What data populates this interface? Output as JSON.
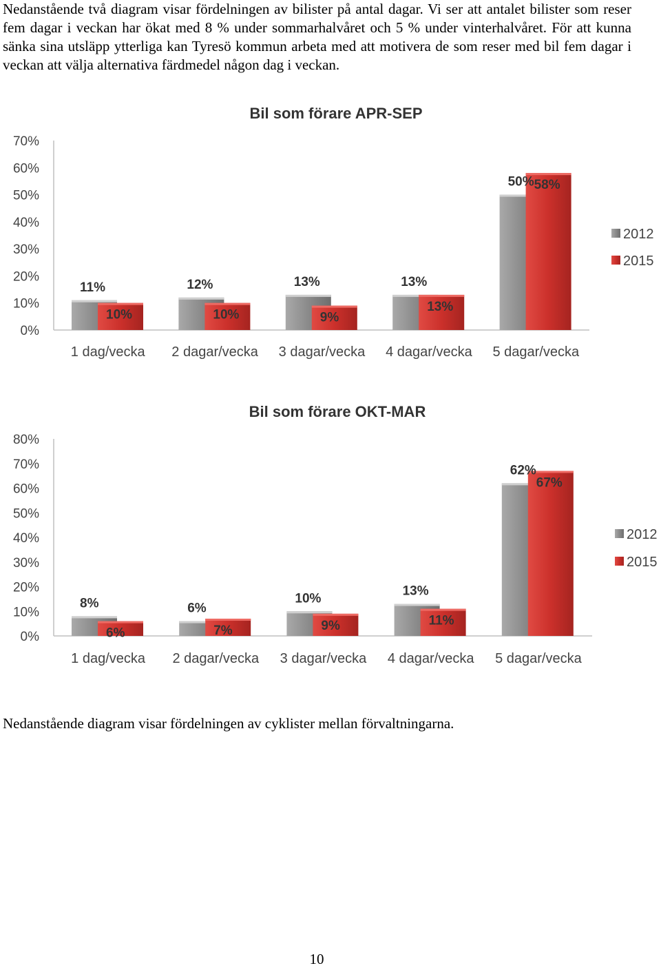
{
  "document": {
    "paragraph_1": "Nedanstående två diagram visar fördelningen av bilister på antal dagar. Vi ser att antalet bilister som reser fem dagar i veckan har ökat med 8 % under sommarhalvåret och 5 % under vinterhalvåret. För att kunna sänka sina utsläpp ytterliga kan Tyresö kommun arbeta med att motivera de som reser med bil fem dagar i veckan att välja alternativa färdmedel någon dag i veckan.",
    "paragraph_2": "Nedanstående diagram visar fördelningen av cyklister mellan förvaltningarna.",
    "page_number": "10"
  },
  "chart_data": [
    {
      "type": "bar",
      "title": "Bil som förare APR-SEP",
      "categories": [
        "1 dag/vecka",
        "2 dagar/vecka",
        "3 dagar/vecka",
        "4 dagar/vecka",
        "5 dagar/vecka"
      ],
      "series": [
        {
          "name": "2012",
          "values": [
            11,
            12,
            13,
            13,
            50
          ],
          "labels": [
            "11%",
            "12%",
            "13%",
            "13%",
            "50%"
          ],
          "color": "#8c8c8c"
        },
        {
          "name": "2015",
          "values": [
            10,
            10,
            9,
            13,
            58
          ],
          "labels": [
            "10%",
            "10%",
            "9%",
            "13%",
            "58%"
          ],
          "color": "#c8302c"
        }
      ],
      "yticks": [
        "0%",
        "10%",
        "20%",
        "30%",
        "40%",
        "50%",
        "60%",
        "70%"
      ],
      "ylim": [
        0,
        70
      ],
      "xlabel": "",
      "ylabel": "",
      "grid": false,
      "legend": "right"
    },
    {
      "type": "bar",
      "title": "Bil som förare OKT-MAR",
      "categories": [
        "1 dag/vecka",
        "2 dagar/vecka",
        "3 dagar/vecka",
        "4 dagar/vecka",
        "5 dagar/vecka"
      ],
      "series": [
        {
          "name": "2012",
          "values": [
            8,
            6,
            10,
            13,
            62
          ],
          "labels": [
            "8%",
            "6%",
            "10%",
            "13%",
            "62%"
          ],
          "color": "#8c8c8c"
        },
        {
          "name": "2015",
          "values": [
            6,
            7,
            9,
            11,
            67
          ],
          "labels": [
            "6%",
            "7%",
            "9%",
            "11%",
            "67%"
          ],
          "color": "#c8302c"
        }
      ],
      "yticks": [
        "0%",
        "10%",
        "20%",
        "30%",
        "40%",
        "50%",
        "60%",
        "70%",
        "80%"
      ],
      "ylim": [
        0,
        80
      ],
      "xlabel": "",
      "ylabel": "",
      "grid": false,
      "legend": "right"
    }
  ]
}
